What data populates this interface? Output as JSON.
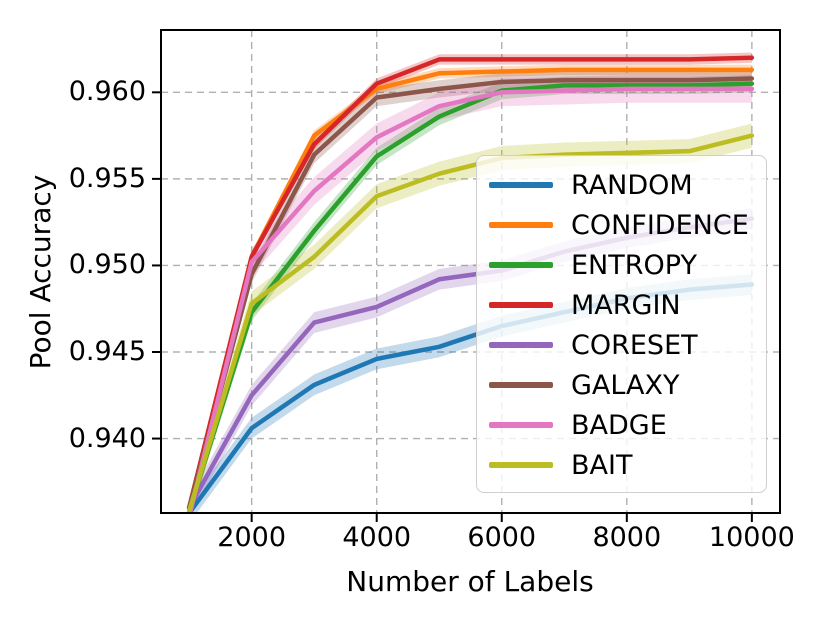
{
  "chart_data": {
    "type": "line",
    "title": "",
    "xlabel": "Number of Labels",
    "ylabel": "Pool Accuracy",
    "x": [
      1000,
      2000,
      3000,
      4000,
      5000,
      6000,
      7000,
      8000,
      9000,
      10000
    ],
    "xticks": [
      "2000",
      "4000",
      "6000",
      "8000",
      "10000"
    ],
    "yticks": [
      "0.940",
      "0.945",
      "0.950",
      "0.955",
      "0.960"
    ],
    "xlim": [
      550,
      10450
    ],
    "ylim": [
      0.9357,
      0.9636
    ],
    "grid": "dashed",
    "grid_color": "#b0b0b0",
    "spine_color": "#000000",
    "legend_position": "center-right",
    "series": [
      {
        "name": "RANDOM",
        "color": "#1f77b4",
        "band": 0.0006,
        "values": [
          0.9357,
          0.9406,
          0.9431,
          0.9446,
          0.9453,
          0.9465,
          0.9473,
          0.9481,
          0.9486,
          0.9489
        ]
      },
      {
        "name": "CONFIDENCE",
        "color": "#ff7f0e",
        "band": 0.0003,
        "values": [
          0.936,
          0.9505,
          0.9575,
          0.9602,
          0.9611,
          0.9612,
          0.9613,
          0.9613,
          0.9613,
          0.9613
        ]
      },
      {
        "name": "ENTROPY",
        "color": "#2ca02c",
        "band": 0.0005,
        "values": [
          0.9358,
          0.9473,
          0.952,
          0.9563,
          0.9586,
          0.9601,
          0.9604,
          0.9604,
          0.9604,
          0.9605
        ]
      },
      {
        "name": "MARGIN",
        "color": "#d62728",
        "band": 0.0003,
        "values": [
          0.936,
          0.9505,
          0.957,
          0.9605,
          0.9619,
          0.9619,
          0.9619,
          0.9619,
          0.9619,
          0.962
        ]
      },
      {
        "name": "CORESET",
        "color": "#9467bd",
        "band": 0.0006,
        "values": [
          0.936,
          0.9425,
          0.9467,
          0.9476,
          0.9492,
          0.9497,
          0.9508,
          0.9516,
          0.9522,
          0.9527
        ]
      },
      {
        "name": "GALAXY",
        "color": "#8c564b",
        "band": 0.0005,
        "values": [
          0.936,
          0.9495,
          0.9564,
          0.9597,
          0.9602,
          0.9606,
          0.9607,
          0.9607,
          0.9607,
          0.9608
        ]
      },
      {
        "name": "BADGE",
        "color": "#e377c2",
        "band": 0.0008,
        "values": [
          0.9355,
          0.9502,
          0.9543,
          0.9574,
          0.9592,
          0.96,
          0.9601,
          0.9602,
          0.9602,
          0.9602
        ]
      },
      {
        "name": "BAIT",
        "color": "#bcbd22",
        "band": 0.0007,
        "values": [
          0.9358,
          0.9478,
          0.9505,
          0.954,
          0.9553,
          0.9562,
          0.9564,
          0.9565,
          0.9566,
          0.9575
        ]
      }
    ]
  }
}
